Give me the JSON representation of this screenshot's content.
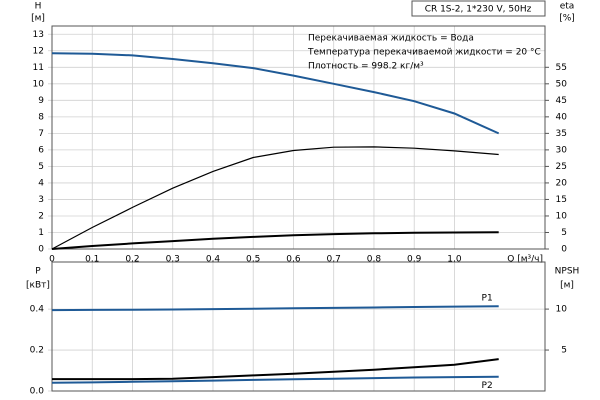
{
  "chart_data": [
    {
      "type": "line",
      "annotations": [
        "CR 1S-2, 1*230 V, 50Hz",
        "Перекачиваемая жидкость = Вода",
        "Температура перекачиваемой жидкости = 20 °C",
        "Плотность = 998.2 кг/м³"
      ],
      "ylabel": "H",
      "yunit": "[м]",
      "y2label": "eta",
      "y2unit": "[%]",
      "xlabel": "Q [м³/ч]",
      "x": [
        0,
        0.1,
        0.2,
        0.3,
        0.4,
        0.5,
        0.6,
        0.7,
        0.8,
        0.9,
        1.0,
        1.11
      ],
      "xlim": [
        0,
        1.225
      ],
      "xticks": [
        0,
        {
          "value": 0.1,
          "label": "0,1"
        },
        {
          "value": 0.2,
          "label": "0,2"
        },
        {
          "value": 0.3,
          "label": "0,3"
        },
        {
          "value": 0.4,
          "label": "0,4"
        },
        {
          "value": 0.5,
          "label": "0,5"
        },
        {
          "value": 0.6,
          "label": "0,6"
        },
        {
          "value": 0.7,
          "label": "0,7"
        },
        {
          "value": 0.8,
          "label": "0,8"
        },
        {
          "value": 0.9,
          "label": "0,9"
        },
        {
          "value": 1.0,
          "label": "1,0"
        }
      ],
      "ylim": [
        0,
        13.5
      ],
      "yticks": [
        0,
        1,
        2,
        3,
        4,
        5,
        6,
        7,
        8,
        9,
        10,
        11,
        12,
        13
      ],
      "y2lim": [
        0,
        67.5
      ],
      "y2ticks": [
        0,
        5,
        10,
        15,
        20,
        25,
        30,
        35,
        40,
        45,
        50,
        55
      ],
      "grid": true,
      "series": [
        {
          "color": "#1f5a96",
          "values": [
            11.85,
            11.82,
            11.72,
            11.5,
            11.25,
            10.95,
            10.5,
            10.0,
            9.5,
            8.95,
            8.2,
            7.0
          ]
        },
        {
          "color": "#000000",
          "axis": "y2",
          "values": [
            0,
            6.5,
            12.6,
            18.4,
            23.5,
            27.7,
            29.8,
            30.8,
            30.9,
            30.5,
            29.7,
            28.6
          ]
        },
        {
          "color": "#000000",
          "values": [
            0,
            0.18,
            0.34,
            0.48,
            0.62,
            0.73,
            0.83,
            0.9,
            0.95,
            0.98,
            1.0,
            1.02
          ]
        }
      ]
    },
    {
      "type": "line",
      "ylabel": "P",
      "yunit": "[кВт]",
      "y2label": "NPSH",
      "y2unit": "[м]",
      "x": [
        0,
        0.1,
        0.2,
        0.3,
        0.4,
        0.5,
        0.6,
        0.7,
        0.8,
        0.9,
        1.0,
        1.11
      ],
      "xlim": [
        0,
        1.225
      ],
      "xticks": [
        0,
        0.1,
        0.2,
        0.3,
        0.4,
        0.5,
        0.6,
        0.7,
        0.8,
        0.9,
        1.0
      ],
      "ylim": [
        0,
        0.63
      ],
      "yticks": [
        {
          "value": 0,
          "label": "0.0"
        },
        0.2,
        0.4
      ],
      "y2lim": [
        0,
        15.75
      ],
      "y2ticks": [
        5,
        10
      ],
      "grid": true,
      "series": [
        {
          "name": "P1",
          "color": "#1f5a96",
          "values": [
            0.395,
            0.396,
            0.397,
            0.398,
            0.4,
            0.402,
            0.404,
            0.406,
            0.408,
            0.41,
            0.412,
            0.414
          ]
        },
        {
          "name": "P2",
          "color": "#1f5a96",
          "values": [
            0.04,
            0.042,
            0.045,
            0.048,
            0.051,
            0.054,
            0.057,
            0.06,
            0.063,
            0.066,
            0.068,
            0.07
          ]
        },
        {
          "color": "#000000",
          "axis": "y2",
          "values": [
            1.45,
            1.45,
            1.45,
            1.5,
            1.7,
            1.9,
            2.1,
            2.35,
            2.6,
            2.9,
            3.2,
            3.9
          ]
        }
      ]
    }
  ]
}
